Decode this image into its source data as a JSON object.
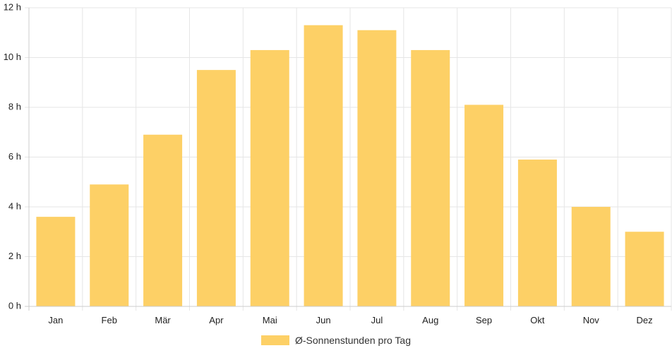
{
  "chart_data": {
    "type": "bar",
    "categories": [
      "Jan",
      "Feb",
      "Mär",
      "Apr",
      "Mai",
      "Jun",
      "Jul",
      "Aug",
      "Sep",
      "Okt",
      "Nov",
      "Dez"
    ],
    "series": [
      {
        "name": "Ø-Sonnenstunden pro Tag",
        "values": [
          3.6,
          4.9,
          6.9,
          9.5,
          10.3,
          11.3,
          11.1,
          10.3,
          8.1,
          5.9,
          4.0,
          3.0
        ],
        "color": "#fdd066"
      }
    ],
    "y_ticks": [
      "0 h",
      "2 h",
      "4 h",
      "6 h",
      "8 h",
      "10 h",
      "12 h"
    ],
    "ylim": [
      0,
      12
    ],
    "grid": true,
    "legend_position": "bottom"
  }
}
